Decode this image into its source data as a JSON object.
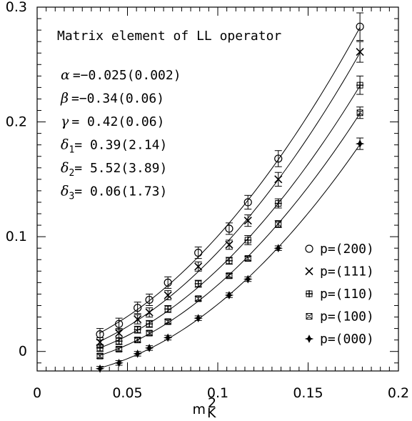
{
  "chart_data": {
    "type": "scatter",
    "title": "Matrix element of LL operator",
    "xlabel": "m",
    "xlabel_sub": "K",
    "xlabel_sup": "2",
    "xlim": [
      0,
      0.2
    ],
    "ylim": [
      -0.017,
      0.3
    ],
    "xticks": [
      0,
      0.05,
      0.1,
      0.15,
      0.2
    ],
    "xtick_labels": [
      "0",
      "0.05",
      "0.1",
      "0.15",
      "0.2"
    ],
    "yticks": [
      0,
      0.1,
      0.2,
      0.3
    ],
    "ytick_labels": [
      "0",
      "0.1",
      "0.2",
      "0.3"
    ],
    "grid": false,
    "legend_position": "bottom-right",
    "annotations": [
      {
        "sym": "α",
        "sub": "",
        "text": "=−0.025(0.002)"
      },
      {
        "sym": "β",
        "sub": "",
        "text": "=−0.34(0.06)"
      },
      {
        "sym": "γ",
        "sub": "",
        "text": "= 0.42(0.06)"
      },
      {
        "sym": "δ",
        "sub": "1",
        "text": "= 0.39(2.14)"
      },
      {
        "sym": "δ",
        "sub": "2",
        "text": "= 5.52(3.89)"
      },
      {
        "sym": "δ",
        "sub": "3",
        "text": "= 0.06(1.73)"
      }
    ],
    "x": [
      0.0348,
      0.0453,
      0.0556,
      0.0621,
      0.0724,
      0.0892,
      0.1063,
      0.1167,
      0.1335,
      0.1787
    ],
    "series": [
      {
        "name": "p=(200)",
        "marker": "circle",
        "values": [
          0.015,
          0.024,
          0.038,
          0.045,
          0.06,
          0.086,
          0.107,
          0.13,
          0.168,
          0.283
        ],
        "errors": [
          0.005,
          0.005,
          0.005,
          0.005,
          0.005,
          0.005,
          0.005,
          0.006,
          0.007,
          0.012
        ]
      },
      {
        "name": "p=(111)",
        "marker": "x",
        "values": [
          0.008,
          0.016,
          0.028,
          0.034,
          0.049,
          0.074,
          0.093,
          0.114,
          0.15,
          0.261
        ],
        "errors": [
          0.004,
          0.004,
          0.004,
          0.004,
          0.004,
          0.004,
          0.004,
          0.005,
          0.006,
          0.009
        ]
      },
      {
        "name": "p=(110)",
        "marker": "plusbox",
        "values": [
          0.003,
          0.009,
          0.019,
          0.024,
          0.037,
          0.059,
          0.079,
          0.097,
          0.129,
          0.232
        ],
        "errors": [
          0.003,
          0.003,
          0.003,
          0.003,
          0.003,
          0.003,
          0.003,
          0.004,
          0.004,
          0.008
        ]
      },
      {
        "name": "p=(100)",
        "marker": "cbox",
        "values": [
          -0.004,
          0.002,
          0.01,
          0.016,
          0.026,
          0.046,
          0.066,
          0.081,
          0.111,
          0.208
        ],
        "errors": [
          0.002,
          0.002,
          0.002,
          0.002,
          0.002,
          0.002,
          0.002,
          0.002,
          0.003,
          0.005
        ]
      },
      {
        "name": "p=(000)",
        "marker": "diamond",
        "values": [
          -0.015,
          -0.01,
          -0.002,
          0.003,
          0.012,
          0.029,
          0.049,
          0.063,
          0.09,
          0.181
        ],
        "errors": [
          0.002,
          0.002,
          0.002,
          0.002,
          0.002,
          0.002,
          0.002,
          0.002,
          0.002,
          0.005
        ]
      }
    ]
  }
}
